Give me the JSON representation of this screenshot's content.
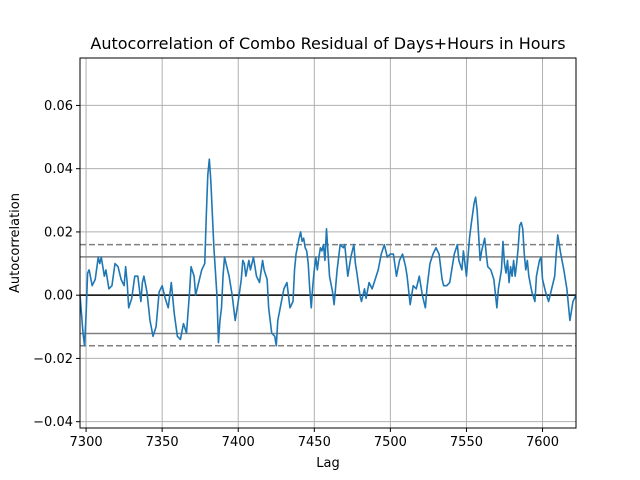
{
  "chart_data": {
    "type": "line",
    "title": "Autocorrelation of Combo Residual of Days+Hours in Hours",
    "xlabel": "Lag",
    "ylabel": "Autocorrelation",
    "xlim": [
      7296,
      7622
    ],
    "ylim": [
      -0.042,
      0.075
    ],
    "x_ticks": [
      7300,
      7350,
      7400,
      7450,
      7500,
      7550,
      7600
    ],
    "x_tick_labels": [
      "7300",
      "7350",
      "7400",
      "7450",
      "7500",
      "7550",
      "7600"
    ],
    "y_ticks": [
      -0.04,
      -0.02,
      0.0,
      0.02,
      0.04,
      0.06
    ],
    "y_tick_labels": [
      "−0.04",
      "−0.02",
      "0.00",
      "0.02",
      "0.04",
      "0.06"
    ],
    "grid": true,
    "zero_line": 0.0,
    "confidence_solid": [
      0.0121,
      -0.0121
    ],
    "confidence_dashed": [
      0.016,
      -0.016
    ],
    "series": [
      {
        "color": "#1f77b4",
        "points": [
          [
            7296,
            0.0
          ],
          [
            7298,
            -0.012
          ],
          [
            7299,
            -0.016
          ],
          [
            7300,
            -0.006
          ],
          [
            7301,
            0.007
          ],
          [
            7302,
            0.008
          ],
          [
            7304,
            0.003
          ],
          [
            7306,
            0.005
          ],
          [
            7308,
            0.012
          ],
          [
            7309,
            0.01
          ],
          [
            7310,
            0.012
          ],
          [
            7312,
            0.006
          ],
          [
            7313,
            0.008
          ],
          [
            7315,
            0.002
          ],
          [
            7317,
            0.003
          ],
          [
            7319,
            0.01
          ],
          [
            7321,
            0.009
          ],
          [
            7323,
            0.005
          ],
          [
            7325,
            0.003
          ],
          [
            7326,
            0.009
          ],
          [
            7327,
            0.004
          ],
          [
            7328,
            -0.004
          ],
          [
            7330,
            -0.001
          ],
          [
            7332,
            0.006
          ],
          [
            7334,
            0.006
          ],
          [
            7336,
            -0.002
          ],
          [
            7337,
            0.004
          ],
          [
            7338,
            0.006
          ],
          [
            7340,
            0.001
          ],
          [
            7342,
            -0.008
          ],
          [
            7344,
            -0.013
          ],
          [
            7346,
            -0.01
          ],
          [
            7348,
            0.001
          ],
          [
            7350,
            0.003
          ],
          [
            7352,
            -0.001
          ],
          [
            7354,
            -0.004
          ],
          [
            7356,
            0.004
          ],
          [
            7358,
            -0.006
          ],
          [
            7360,
            -0.013
          ],
          [
            7362,
            -0.014
          ],
          [
            7364,
            -0.009
          ],
          [
            7366,
            -0.012
          ],
          [
            7368,
            0.001
          ],
          [
            7369,
            0.009
          ],
          [
            7371,
            0.006
          ],
          [
            7372,
            0.0
          ],
          [
            7374,
            0.004
          ],
          [
            7376,
            0.008
          ],
          [
            7378,
            0.01
          ],
          [
            7379,
            0.025
          ],
          [
            7380,
            0.038
          ],
          [
            7381,
            0.043
          ],
          [
            7382,
            0.036
          ],
          [
            7384,
            0.015
          ],
          [
            7386,
            0.0
          ],
          [
            7387,
            -0.015
          ],
          [
            7388,
            -0.008
          ],
          [
            7389,
            -0.004
          ],
          [
            7390,
            0.006
          ],
          [
            7391,
            0.012
          ],
          [
            7392,
            0.01
          ],
          [
            7394,
            0.006
          ],
          [
            7396,
            0.0
          ],
          [
            7398,
            -0.008
          ],
          [
            7400,
            -0.002
          ],
          [
            7402,
            0.005
          ],
          [
            7403,
            0.011
          ],
          [
            7404,
            0.01
          ],
          [
            7405,
            0.006
          ],
          [
            7407,
            0.011
          ],
          [
            7408,
            0.008
          ],
          [
            7410,
            0.012
          ],
          [
            7412,
            0.006
          ],
          [
            7414,
            0.004
          ],
          [
            7416,
            0.011
          ],
          [
            7417,
            0.008
          ],
          [
            7419,
            0.005
          ],
          [
            7420,
            -0.004
          ],
          [
            7422,
            -0.012
          ],
          [
            7424,
            -0.013
          ],
          [
            7425,
            -0.016
          ],
          [
            7426,
            -0.008
          ],
          [
            7428,
            -0.003
          ],
          [
            7430,
            0.002
          ],
          [
            7432,
            0.004
          ],
          [
            7434,
            -0.004
          ],
          [
            7436,
            -0.002
          ],
          [
            7437,
            0.008
          ],
          [
            7438,
            0.013
          ],
          [
            7440,
            0.018
          ],
          [
            7441,
            0.02
          ],
          [
            7442,
            0.017
          ],
          [
            7443,
            0.018
          ],
          [
            7444,
            0.015
          ],
          [
            7445,
            0.014
          ],
          [
            7446,
            0.01
          ],
          [
            7447,
            0.002
          ],
          [
            7448,
            -0.004
          ],
          [
            7449,
            0.003
          ],
          [
            7450,
            0.008
          ],
          [
            7451,
            0.012
          ],
          [
            7452,
            0.008
          ],
          [
            7453,
            0.012
          ],
          [
            7454,
            0.015
          ],
          [
            7455,
            0.014
          ],
          [
            7456,
            0.016
          ],
          [
            7457,
            0.011
          ],
          [
            7458,
            0.021
          ],
          [
            7460,
            0.006
          ],
          [
            7462,
            0.001
          ],
          [
            7463,
            -0.003
          ],
          [
            7465,
            0.008
          ],
          [
            7466,
            0.012
          ],
          [
            7467,
            0.016
          ],
          [
            7469,
            0.015
          ],
          [
            7470,
            0.016
          ],
          [
            7472,
            0.006
          ],
          [
            7474,
            0.012
          ],
          [
            7476,
            0.016
          ],
          [
            7477,
            0.01
          ],
          [
            7478,
            0.007
          ],
          [
            7480,
            0.0
          ],
          [
            7481,
            -0.002
          ],
          [
            7483,
            0.002
          ],
          [
            7484,
            -0.001
          ],
          [
            7486,
            0.004
          ],
          [
            7488,
            0.002
          ],
          [
            7490,
            0.005
          ],
          [
            7492,
            0.008
          ],
          [
            7494,
            0.013
          ],
          [
            7496,
            0.016
          ],
          [
            7498,
            0.012
          ],
          [
            7500,
            0.013
          ],
          [
            7502,
            0.013
          ],
          [
            7504,
            0.006
          ],
          [
            7506,
            0.011
          ],
          [
            7508,
            0.013
          ],
          [
            7510,
            0.009
          ],
          [
            7511,
            0.006
          ],
          [
            7513,
            -0.003
          ],
          [
            7515,
            0.003
          ],
          [
            7517,
            0.002
          ],
          [
            7519,
            0.006
          ],
          [
            7521,
            0.0
          ],
          [
            7523,
            -0.004
          ],
          [
            7524,
            0.002
          ],
          [
            7526,
            0.01
          ],
          [
            7528,
            0.013
          ],
          [
            7530,
            0.015
          ],
          [
            7532,
            0.013
          ],
          [
            7534,
            0.005
          ],
          [
            7535,
            0.003
          ],
          [
            7537,
            0.003
          ],
          [
            7539,
            0.004
          ],
          [
            7541,
            0.01
          ],
          [
            7542,
            0.013
          ],
          [
            7544,
            0.016
          ],
          [
            7545,
            0.011
          ],
          [
            7547,
            0.008
          ],
          [
            7548,
            0.014
          ],
          [
            7550,
            0.006
          ],
          [
            7551,
            0.012
          ],
          [
            7552,
            0.018
          ],
          [
            7553,
            0.022
          ],
          [
            7555,
            0.029
          ],
          [
            7556,
            0.031
          ],
          [
            7557,
            0.027
          ],
          [
            7558,
            0.019
          ],
          [
            7559,
            0.011
          ],
          [
            7560,
            0.014
          ],
          [
            7561,
            0.016
          ],
          [
            7562,
            0.018
          ],
          [
            7563,
            0.013
          ],
          [
            7564,
            0.009
          ],
          [
            7566,
            0.008
          ],
          [
            7568,
            0.005
          ],
          [
            7570,
            -0.004
          ],
          [
            7571,
            0.002
          ],
          [
            7573,
            0.008
          ],
          [
            7574,
            0.017
          ],
          [
            7575,
            0.01
          ],
          [
            7576,
            0.007
          ],
          [
            7577,
            0.011
          ],
          [
            7578,
            0.004
          ],
          [
            7579,
            0.009
          ],
          [
            7580,
            0.006
          ],
          [
            7581,
            0.011
          ],
          [
            7582,
            0.006
          ],
          [
            7583,
            0.01
          ],
          [
            7584,
            0.015
          ],
          [
            7585,
            0.022
          ],
          [
            7586,
            0.023
          ],
          [
            7587,
            0.021
          ],
          [
            7588,
            0.013
          ],
          [
            7589,
            0.008
          ],
          [
            7590,
            0.011
          ],
          [
            7591,
            0.006
          ],
          [
            7593,
            0.001
          ],
          [
            7595,
            -0.002
          ],
          [
            7596,
            0.006
          ],
          [
            7598,
            0.011
          ],
          [
            7599,
            0.012
          ],
          [
            7600,
            0.005
          ],
          [
            7602,
            0.001
          ],
          [
            7604,
            -0.002
          ],
          [
            7606,
            0.002
          ],
          [
            7608,
            0.006
          ],
          [
            7609,
            0.013
          ],
          [
            7610,
            0.019
          ],
          [
            7611,
            0.016
          ],
          [
            7612,
            0.013
          ],
          [
            7614,
            0.008
          ],
          [
            7616,
            0.002
          ],
          [
            7617,
            -0.003
          ],
          [
            7618,
            -0.008
          ],
          [
            7619,
            -0.005
          ],
          [
            7620,
            -0.002
          ],
          [
            7622,
            0.0
          ]
        ]
      }
    ]
  }
}
